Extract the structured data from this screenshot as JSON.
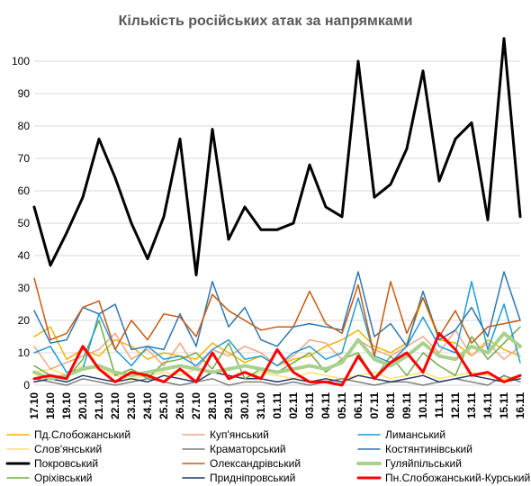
{
  "chart_data": {
    "type": "line",
    "title": "Кількість російських атак за напрямками",
    "xlabel": "",
    "ylabel": "",
    "ylim": [
      0,
      105
    ],
    "yticks": [
      0,
      10,
      20,
      30,
      40,
      50,
      60,
      70,
      80,
      90,
      100
    ],
    "grid": "horizontal",
    "legend_position": "bottom",
    "x": [
      "17.10",
      "18.10",
      "19.10",
      "20.10",
      "21.10",
      "22.10",
      "23.10",
      "24.10",
      "25.10",
      "26.10",
      "27.10",
      "28.10",
      "29.10",
      "30.10",
      "31.10",
      "01.11",
      "02.11",
      "03.11",
      "04.11",
      "05.11",
      "06.11",
      "07.11",
      "08.11",
      "09.11",
      "10.11",
      "11.11",
      "12.11",
      "13.11",
      "14.11",
      "15.11",
      "16.11"
    ],
    "series": [
      {
        "name": "Пд.Слобожанський",
        "color": "#f4b400",
        "width": 1.5,
        "values": [
          15,
          18,
          8,
          11,
          9,
          14,
          12,
          8,
          10,
          9,
          8,
          13,
          10,
          7,
          9,
          6,
          8,
          9,
          12,
          14,
          17,
          12,
          10,
          13,
          27,
          14,
          13,
          9,
          14,
          11,
          9
        ]
      },
      {
        "name": "Куп'янський",
        "color": "#f4a582",
        "width": 1.5,
        "values": [
          12,
          5,
          7,
          9,
          11,
          16,
          8,
          11,
          6,
          13,
          5,
          11,
          9,
          12,
          10,
          6,
          9,
          14,
          13,
          8,
          14,
          11,
          9,
          12,
          15,
          10,
          17,
          9,
          13,
          8,
          12
        ]
      },
      {
        "name": "Лиманський",
        "color": "#1f9bd6",
        "width": 1.5,
        "values": [
          10,
          12,
          4,
          5,
          22,
          11,
          6,
          12,
          8,
          9,
          6,
          11,
          14,
          8,
          9,
          6,
          10,
          12,
          8,
          10,
          27,
          9,
          7,
          12,
          21,
          12,
          10,
          32,
          11,
          25,
          7
        ]
      },
      {
        "name": "Слов'янський",
        "color": "#ffe066",
        "width": 1.5,
        "values": [
          4,
          5,
          3,
          6,
          5,
          3,
          2,
          3,
          4,
          3,
          5,
          4,
          3,
          2,
          4,
          3,
          2,
          4,
          3,
          2,
          3,
          4,
          2,
          3,
          4,
          2,
          3,
          4,
          3,
          2,
          3
        ]
      },
      {
        "name": "Краматорський",
        "color": "#7f7f7f",
        "width": 1.5,
        "values": [
          2,
          1,
          0,
          2,
          1,
          0,
          1,
          2,
          1,
          0,
          1,
          2,
          0,
          1,
          1,
          0,
          1,
          0,
          1,
          2,
          1,
          0,
          1,
          1,
          0,
          1,
          2,
          1,
          0,
          3,
          1
        ]
      },
      {
        "name": "Костянтинівський",
        "color": "#2e75b6",
        "width": 1.5,
        "values": [
          23,
          13,
          14,
          24,
          22,
          25,
          11,
          12,
          11,
          22,
          12,
          32,
          18,
          24,
          14,
          12,
          18,
          19,
          18,
          17,
          35,
          15,
          19,
          12,
          29,
          14,
          17,
          24,
          15,
          35,
          20
        ]
      },
      {
        "name": "Покровський",
        "color": "#000000",
        "width": 3,
        "values": [
          55,
          37,
          47,
          58,
          76,
          64,
          50,
          39,
          52,
          76,
          34,
          79,
          45,
          55,
          48,
          48,
          50,
          68,
          55,
          52,
          100,
          58,
          62,
          73,
          97,
          63,
          76,
          81,
          51,
          107,
          52
        ]
      },
      {
        "name": "Олександрівський",
        "color": "#c55a11",
        "width": 1.5,
        "values": [
          33,
          14,
          16,
          24,
          26,
          11,
          20,
          14,
          22,
          21,
          15,
          28,
          23,
          20,
          17,
          18,
          18,
          29,
          19,
          16,
          31,
          9,
          32,
          16,
          27,
          15,
          23,
          13,
          18,
          19,
          20
        ]
      },
      {
        "name": "Гуляйпільський",
        "color": "#a9d18e",
        "width": 4,
        "values": [
          4,
          2,
          3,
          5,
          6,
          4,
          3,
          4,
          5,
          6,
          5,
          4,
          5,
          6,
          5,
          4,
          5,
          6,
          5,
          7,
          14,
          8,
          6,
          9,
          13,
          9,
          8,
          12,
          10,
          16,
          12
        ]
      },
      {
        "name": "Оріхівський",
        "color": "#70ad47",
        "width": 1.5,
        "values": [
          6,
          3,
          2,
          8,
          20,
          3,
          5,
          2,
          7,
          8,
          10,
          5,
          13,
          2,
          5,
          4,
          7,
          10,
          4,
          8,
          10,
          2,
          9,
          3,
          10,
          6,
          3,
          15,
          8,
          13,
          18
        ]
      },
      {
        "name": "Придніпровський",
        "color": "#1f3864",
        "width": 1.5,
        "values": [
          1,
          2,
          1,
          3,
          2,
          1,
          2,
          1,
          3,
          2,
          1,
          4,
          3,
          2,
          2,
          1,
          2,
          1,
          2,
          1,
          3,
          2,
          1,
          2,
          3,
          1,
          2,
          3,
          2,
          1,
          2
        ]
      },
      {
        "name": "Пн.Слобожанський-Курський",
        "color": "#ff0000",
        "width": 3,
        "values": [
          2,
          3,
          2,
          12,
          5,
          1,
          4,
          3,
          1,
          5,
          1,
          10,
          2,
          4,
          2,
          11,
          4,
          1,
          1,
          0,
          9,
          2,
          7,
          10,
          4,
          16,
          11,
          3,
          4,
          1,
          3
        ]
      }
    ]
  }
}
